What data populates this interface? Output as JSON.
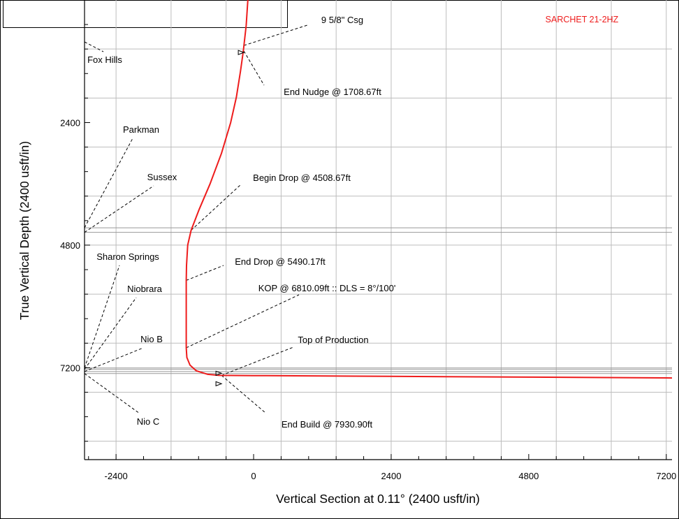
{
  "chart_data": {
    "type": "line",
    "title": "",
    "well_name": "SARCHET 21-2HZ",
    "xlabel": "Vertical Section at 0.11° (2400 usft/in)",
    "ylabel": "True Vertical Depth (2400 usft/in)",
    "xlim": [
      -2950,
      7300
    ],
    "ylim": [
      9000,
      0
    ],
    "x_ticks": [
      -2400,
      0,
      2400,
      4800,
      7200
    ],
    "y_ticks": [
      2400,
      4800,
      7200
    ],
    "grid": true,
    "colors": {
      "well_path": "#ee1c1c",
      "grid": "#bdbdbd",
      "axis": "#000000",
      "leader": "#000000"
    },
    "series": [
      {
        "name": "SARCHET 21-2HZ",
        "points": [
          [
            -100,
            0
          ],
          [
            -130,
            500
          ],
          [
            -180,
            1000
          ],
          [
            -230,
            1400
          ],
          [
            -300,
            1900
          ],
          [
            -400,
            2400
          ],
          [
            -560,
            3000
          ],
          [
            -760,
            3600
          ],
          [
            -950,
            4100
          ],
          [
            -1090,
            4508.67
          ],
          [
            -1150,
            4800
          ],
          [
            -1170,
            5200
          ],
          [
            -1175,
            5490.17
          ],
          [
            -1175,
            6000
          ],
          [
            -1175,
            6500
          ],
          [
            -1175,
            6810.09
          ],
          [
            -1165,
            7000
          ],
          [
            -1110,
            7150
          ],
          [
            -1000,
            7260
          ],
          [
            -800,
            7330
          ],
          [
            -600,
            7350
          ],
          [
            0,
            7355
          ],
          [
            2400,
            7370
          ],
          [
            4800,
            7385
          ],
          [
            7200,
            7400
          ],
          [
            7300,
            7401
          ]
        ]
      }
    ],
    "formations": [
      {
        "name": "Fox Hills",
        "tvd": 0
      },
      {
        "name": "Parkman",
        "tvd": 4460
      },
      {
        "name": "Sussex",
        "tvd": 4550
      },
      {
        "name": "Sharon Springs",
        "tvd": 7205
      },
      {
        "name": "Niobrara",
        "tvd": 7230
      },
      {
        "name": "Nio B",
        "tvd": 7275
      },
      {
        "name": "Nio C",
        "tvd": 7315
      }
    ],
    "annotations": [
      {
        "label": "9 5/8\" Csg",
        "x": -170,
        "tvd": 890
      },
      {
        "label": "End Nudge @ 1708.67ft",
        "x": -170,
        "tvd": 1000
      },
      {
        "label": "Begin Drop @ 4508.67ft",
        "x": -1090,
        "tvd": 4508.67
      },
      {
        "label": "End Drop @ 5490.17ft",
        "x": -1175,
        "tvd": 5490.17
      },
      {
        "label": "KOP @ 6810.09ft :: DLS = 8°/100'",
        "x": -1175,
        "tvd": 6810.09
      },
      {
        "label": "Top of Production",
        "x": -560,
        "tvd": 7350
      },
      {
        "label": "End Build @ 7930.90ft",
        "x": -560,
        "tvd": 7350
      }
    ]
  }
}
